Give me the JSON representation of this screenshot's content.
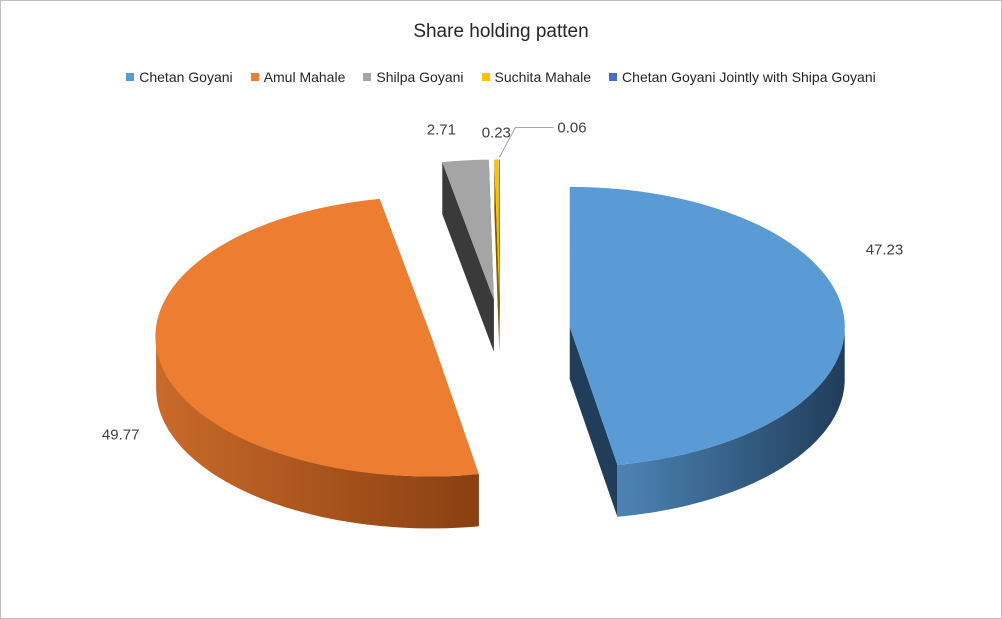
{
  "chart_data": {
    "type": "pie",
    "title": "Share holding patten",
    "legend_position": "top",
    "exploded": true,
    "three_d": true,
    "series": [
      {
        "name": "Chetan Goyani",
        "value": 47.23,
        "label": "47.23",
        "color": "#5B9BD5",
        "side_color": "#203D5A"
      },
      {
        "name": "Amul Mahale",
        "value": 49.77,
        "label": "49.77",
        "color": "#ED7D31",
        "side_color": "#8A3F12"
      },
      {
        "name": "Shilpa Goyani",
        "value": 2.71,
        "label": "2.71",
        "color": "#A5A5A5",
        "side_color": "#3A3A3A"
      },
      {
        "name": "Suchita Mahale",
        "value": 0.23,
        "label": "0.23",
        "color": "#FFC000",
        "side_color": "#7A5C00"
      },
      {
        "name": "Chetan Goyani Jointly with Shipa Goyani",
        "value": 0.06,
        "label": "0.06",
        "color": "#4472C4",
        "side_color": "#1F3560"
      }
    ]
  }
}
